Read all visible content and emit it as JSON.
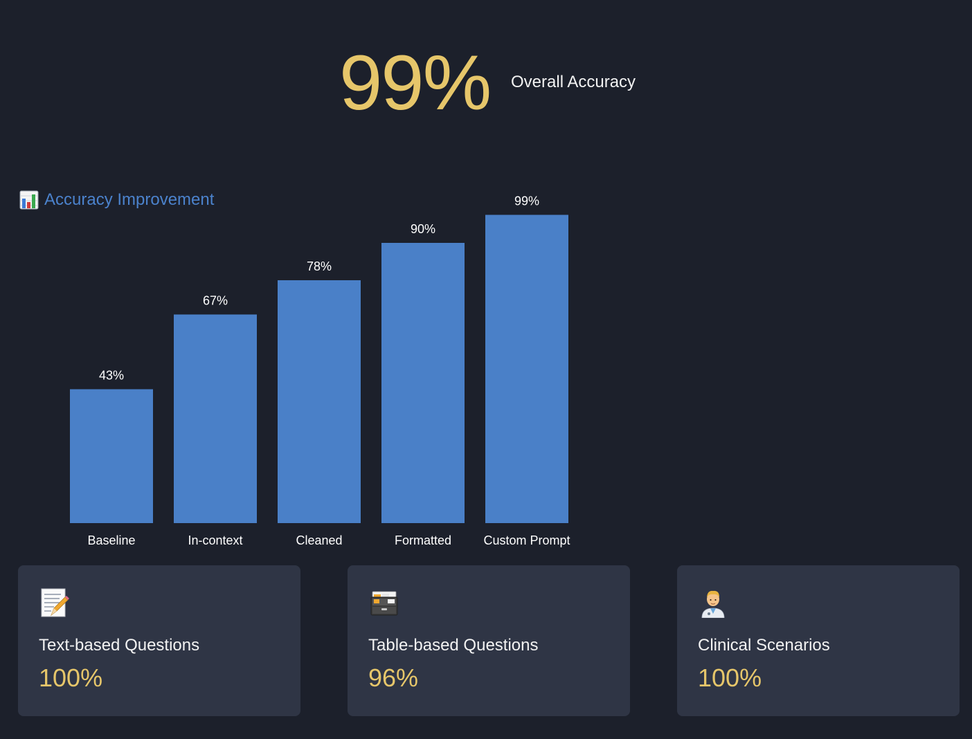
{
  "hero": {
    "value": "99%",
    "label": "Overall Accuracy"
  },
  "section": {
    "title": "Accuracy Improvement",
    "icon": "bar-chart-icon"
  },
  "chart_data": {
    "type": "bar",
    "categories": [
      "Baseline",
      "In-context",
      "Cleaned",
      "Formatted",
      "Custom Prompt"
    ],
    "values": [
      43,
      67,
      78,
      90,
      99
    ],
    "value_labels": [
      "43%",
      "67%",
      "78%",
      "90%",
      "99%"
    ],
    "ylim": [
      0,
      100
    ],
    "grid": false,
    "bar_color": "#4a80c8"
  },
  "cards": [
    {
      "icon": "memo-pencil-icon",
      "label": "Text-based Questions",
      "value": "100%"
    },
    {
      "icon": "file-cabinet-icon",
      "label": "Table-based Questions",
      "value": "96%"
    },
    {
      "icon": "doctor-icon",
      "label": "Clinical Scenarios",
      "value": "100%"
    }
  ],
  "colors": {
    "background": "#1c202b",
    "accent": "#e6c66a",
    "title_blue": "#4b82cc",
    "card_bg": "#2f3545"
  }
}
